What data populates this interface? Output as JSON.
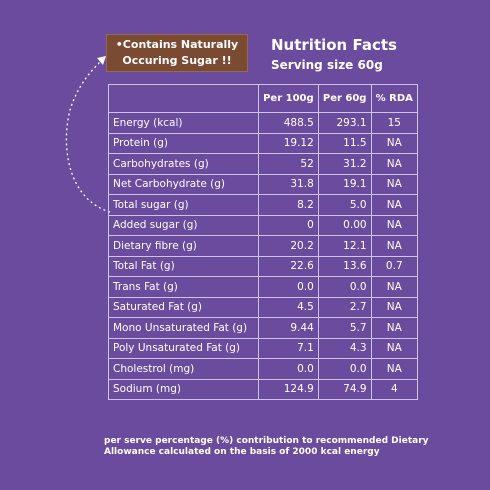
{
  "callout": {
    "line1": "•Contains Naturally",
    "line2": "Occuring Sugar !!"
  },
  "title": "Nutrition Facts",
  "serving": "Serving size 60g",
  "table": {
    "headers": [
      "",
      "Per 100g",
      "Per 60g",
      "% RDA"
    ],
    "rows": [
      {
        "name": "Energy (kcal)",
        "per100": "488.5",
        "per60": "293.1",
        "rda": "15"
      },
      {
        "name": "Protein (g)",
        "per100": "19.12",
        "per60": "11.5",
        "rda": "NA"
      },
      {
        "name": "Carbohydrates (g)",
        "per100": "52",
        "per60": "31.2",
        "rda": "NA"
      },
      {
        "name": "Net Carbohydrate (g)",
        "per100": "31.8",
        "per60": "19.1",
        "rda": "NA"
      },
      {
        "name": "Total sugar (g)",
        "per100": "8.2",
        "per60": "5.0",
        "rda": "NA"
      },
      {
        "name": "Added sugar (g)",
        "per100": "0",
        "per60": "0.00",
        "rda": "NA"
      },
      {
        "name": "Dietary fibre (g)",
        "per100": "20.2",
        "per60": "12.1",
        "rda": "NA"
      },
      {
        "name": "Total Fat (g)",
        "per100": "22.6",
        "per60": "13.6",
        "rda": "0.7"
      },
      {
        "name": "Trans Fat (g)",
        "per100": "0.0",
        "per60": "0.0",
        "rda": "NA"
      },
      {
        "name": "Saturated Fat (g)",
        "per100": "4.5",
        "per60": "2.7",
        "rda": "NA"
      },
      {
        "name": "Mono Unsaturated Fat (g)",
        "per100": "9.44",
        "per60": "5.7",
        "rda": "NA"
      },
      {
        "name": "Poly Unsaturated Fat (g)",
        "per100": "7.1",
        "per60": "4.3",
        "rda": "NA"
      },
      {
        "name": "Cholestrol (mg)",
        "per100": "0.0",
        "per60": "0.0",
        "rda": "NA"
      },
      {
        "name": "Sodium (mg)",
        "per100": "124.9",
        "per60": "74.9",
        "rda": "4"
      }
    ]
  },
  "footnote": "per serve percentage (%) contribution to recommended Dietary Allowance calculated on the basis of 2000 kcal energy",
  "colors": {
    "background": "#6a4b9e",
    "callout": "#7a4a32",
    "grid": "#cfc3e6"
  }
}
